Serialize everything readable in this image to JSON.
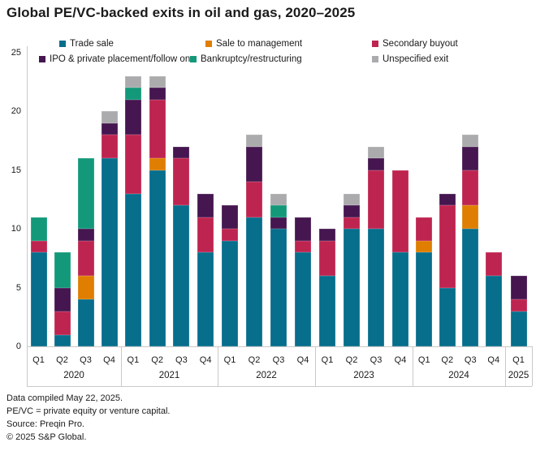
{
  "title": "Global PE/VC-backed exits in oil and gas, 2020–2025",
  "footnotes": [
    "Data compiled May 22, 2025.",
    "PE/VC = private equity or venture capital.",
    "Source: Preqin Pro.",
    "© 2025 S&P Global."
  ],
  "chart_data": {
    "type": "bar",
    "stacked": true,
    "title": "Global PE/VC-backed exits in oil and gas, 2020–2025",
    "ylim": [
      0,
      25
    ],
    "yticks": [
      0,
      5,
      10,
      15,
      20,
      25
    ],
    "grid": false,
    "legend_position": "top",
    "x_groups": [
      {
        "year": "2020",
        "quarters": [
          "Q1",
          "Q2",
          "Q3",
          "Q4"
        ]
      },
      {
        "year": "2021",
        "quarters": [
          "Q1",
          "Q2",
          "Q3",
          "Q4"
        ]
      },
      {
        "year": "2022",
        "quarters": [
          "Q1",
          "Q2",
          "Q3",
          "Q4"
        ]
      },
      {
        "year": "2023",
        "quarters": [
          "Q1",
          "Q2",
          "Q3",
          "Q4"
        ]
      },
      {
        "year": "2024",
        "quarters": [
          "Q1",
          "Q2",
          "Q3",
          "Q4"
        ]
      },
      {
        "year": "2025",
        "quarters": [
          "Q1"
        ]
      }
    ],
    "series": [
      {
        "name": "Trade sale",
        "color": "#076E8C",
        "values": [
          8,
          1,
          4,
          16,
          13,
          15,
          12,
          8,
          9,
          11,
          10,
          8,
          6,
          10,
          10,
          8,
          8,
          5,
          10,
          6,
          3
        ]
      },
      {
        "name": "Sale to management",
        "color": "#DF7E00",
        "values": [
          0,
          0,
          2,
          0,
          0,
          1,
          0,
          0,
          0,
          0,
          0,
          0,
          0,
          0,
          0,
          0,
          1,
          0,
          2,
          0,
          0
        ]
      },
      {
        "name": "Secondary buyout",
        "color": "#BE2450",
        "values": [
          1,
          2,
          3,
          2,
          5,
          5,
          4,
          3,
          1,
          3,
          0,
          1,
          3,
          1,
          5,
          7,
          2,
          7,
          3,
          2,
          1
        ]
      },
      {
        "name": "IPO & private placement/follow on",
        "color": "#45164F",
        "values": [
          0,
          2,
          1,
          1,
          3,
          1,
          1,
          2,
          2,
          3,
          1,
          2,
          1,
          1,
          1,
          0,
          0,
          1,
          2,
          0,
          2
        ]
      },
      {
        "name": "Bankruptcy/restructuring",
        "color": "#139979",
        "values": [
          2,
          3,
          6,
          0,
          1,
          0,
          0,
          0,
          0,
          0,
          1,
          0,
          0,
          0,
          0,
          0,
          0,
          0,
          0,
          0,
          0
        ]
      },
      {
        "name": "Unspecified exit",
        "color": "#ABABAD",
        "values": [
          0,
          0,
          0,
          1,
          1,
          1,
          0,
          0,
          0,
          1,
          1,
          0,
          0,
          1,
          1,
          0,
          0,
          0,
          1,
          0,
          0
        ]
      }
    ],
    "quarter_totals": [
      11,
      8,
      16,
      20,
      23,
      23,
      17,
      13,
      12,
      18,
      13,
      11,
      10,
      13,
      17,
      15,
      11,
      13,
      18,
      8,
      6
    ]
  },
  "legend_layout_note": "row1: Trade sale, Sale to management, Secondary buyout; row2: IPO & private placement/follow on, Bankruptcy/restructuring, Unspecified exit"
}
